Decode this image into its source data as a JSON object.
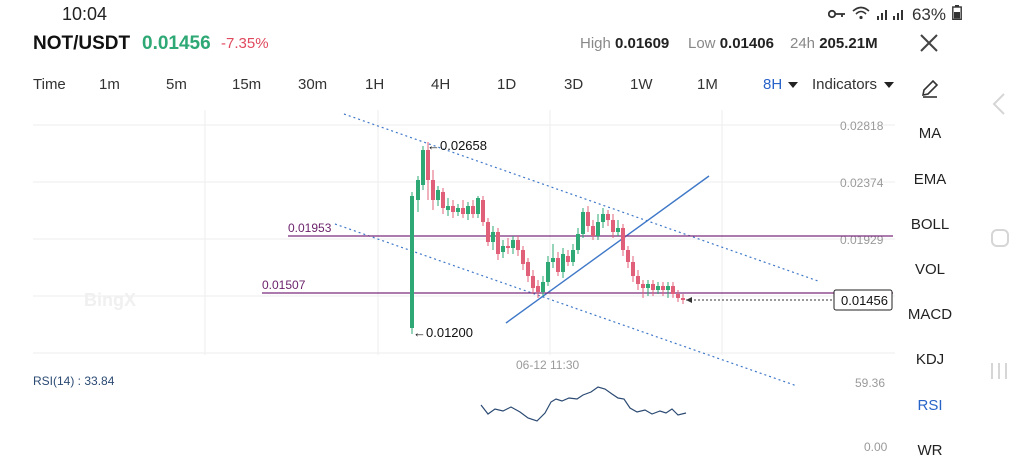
{
  "status": {
    "time": "10:04",
    "battery": "63%"
  },
  "header": {
    "pair": "NOT/USDT",
    "price": "0.01456",
    "change": "-7.35%",
    "high_label": "High",
    "high_value": "0.01609",
    "low_label": "Low",
    "low_value": "0.01406",
    "vol_label": "24h",
    "vol_value": "205.21M"
  },
  "tabs": [
    "Time",
    "1m",
    "5m",
    "15m",
    "30m",
    "1H",
    "4H",
    "1D",
    "3D",
    "1W",
    "1M",
    "8H"
  ],
  "active_tab": "8H",
  "indicators_label": "Indicators",
  "side_indicators": [
    "MA",
    "EMA",
    "BOLL",
    "VOL",
    "MACD",
    "KDJ",
    "RSI",
    "WR"
  ],
  "active_indicator": "RSI",
  "chart": {
    "price_axis": [
      "0.02818",
      "0.02374",
      "0.01929"
    ],
    "current_price_tag": "0.01456",
    "high_marker": "0.02658",
    "low_marker": "0.01200",
    "hline_upper_label": "0.01953",
    "hline_lower_label": "0.01507",
    "time_label": "06-12 11:30",
    "watermark": "BingX"
  },
  "rsi": {
    "label": "RSI(14) : 33.84",
    "axis_top": "59.36",
    "axis_bottom": "0.00"
  },
  "colors": {
    "up": "#2ea874",
    "down": "#e0607a",
    "accent": "#2864c8",
    "hline": "#7a2a7a"
  }
}
